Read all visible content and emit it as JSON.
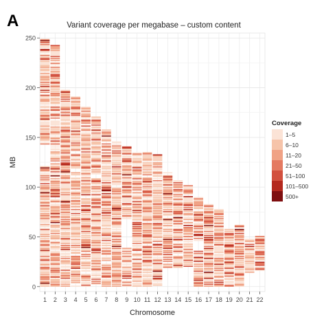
{
  "panel_label": "A",
  "chart_data": {
    "type": "heatmap",
    "title": "Variant coverage per megabase – custom content",
    "xlabel": "Chromosome",
    "ylabel": "MB",
    "categories": [
      "1",
      "2",
      "3",
      "4",
      "5",
      "6",
      "7",
      "8",
      "9",
      "10",
      "11",
      "12",
      "13",
      "14",
      "15",
      "16",
      "17",
      "18",
      "19",
      "20",
      "21",
      "22"
    ],
    "chromosome_length_mb": [
      249,
      243,
      198,
      191,
      181,
      171,
      159,
      146,
      141,
      135,
      135,
      133,
      115,
      107,
      102,
      90,
      83,
      78,
      59,
      63,
      48,
      51
    ],
    "ylim": [
      -5,
      255
    ],
    "yticks": [
      0,
      50,
      100,
      150,
      200,
      250
    ],
    "grid": true,
    "bin_size_mb": 1,
    "legend": {
      "title": "Coverage",
      "placement": "right",
      "classes": [
        "1–5",
        "6–10",
        "11–20",
        "21–50",
        "51–100",
        "101–500",
        "500+"
      ],
      "colors": [
        "#fbe3d6",
        "#f6c4aa",
        "#f0a285",
        "#e47a61",
        "#d2503e",
        "#b4291e",
        "#7f0f10"
      ]
    },
    "gaps_mb": [
      {
        "chromosome": "1",
        "from": 121,
        "to": 143
      },
      {
        "chromosome": "9",
        "from": 39,
        "to": 68
      },
      {
        "chromosome": "16",
        "from": 36,
        "to": 46
      },
      {
        "chromosome": "13",
        "from": 0,
        "to": 19
      },
      {
        "chromosome": "14",
        "from": 0,
        "to": 19
      },
      {
        "chromosome": "15",
        "from": 0,
        "to": 20
      },
      {
        "chromosome": "21",
        "from": 0,
        "to": 14
      },
      {
        "chromosome": "22",
        "from": 0,
        "to": 16
      }
    ]
  }
}
